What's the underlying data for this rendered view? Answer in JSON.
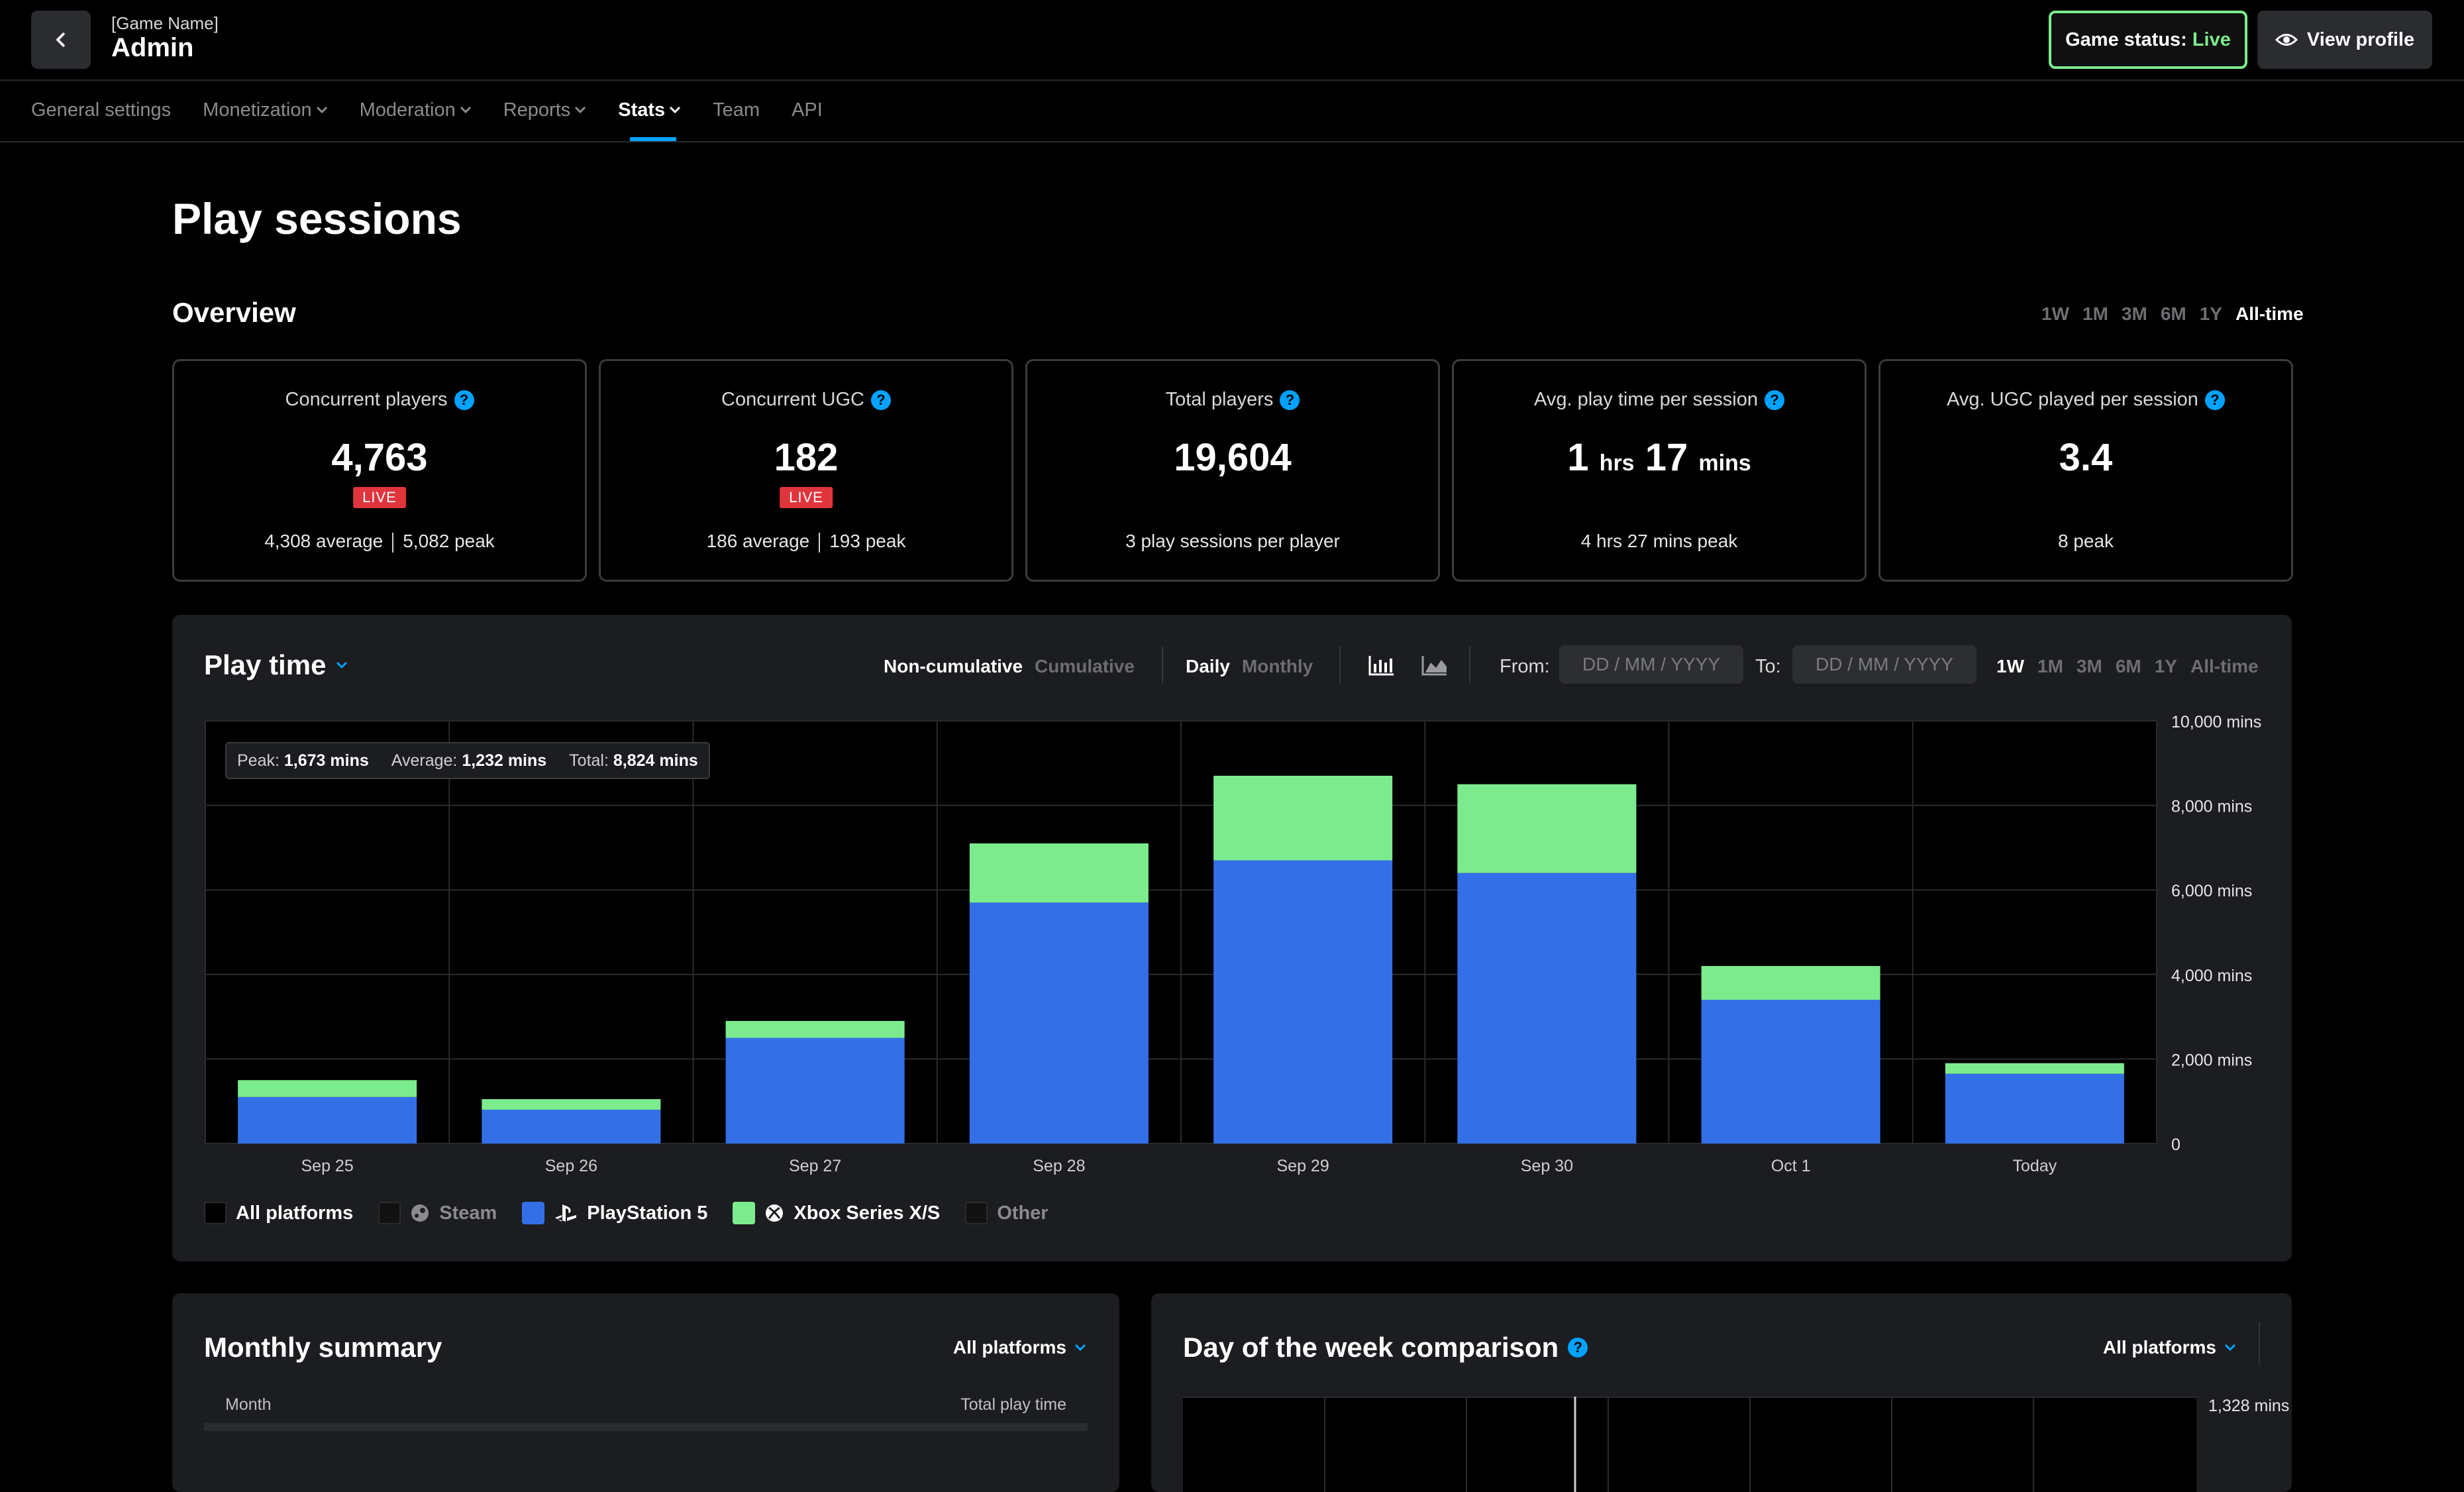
{
  "header": {
    "game_name": "[Game Name]",
    "title": "Admin",
    "status_label": "Game status:",
    "status_value": "Live",
    "view_profile": "View profile"
  },
  "nav": {
    "items": [
      {
        "label": "General settings"
      },
      {
        "label": "Monetization"
      },
      {
        "label": "Moderation"
      },
      {
        "label": "Reports"
      },
      {
        "label": "Stats"
      },
      {
        "label": "Team"
      },
      {
        "label": "API"
      }
    ]
  },
  "page": {
    "title": "Play sessions",
    "overview_title": "Overview",
    "ranges": [
      "1W",
      "1M",
      "3M",
      "6M",
      "1Y",
      "All-time"
    ]
  },
  "cards": [
    {
      "label": "Concurrent players",
      "value": "4,763",
      "badge": "LIVE",
      "sub_a": "4,308 average",
      "sub_b": "5,082 peak"
    },
    {
      "label": "Concurrent UGC",
      "value": "182",
      "badge": "LIVE",
      "sub_a": "186 average",
      "sub_b": "193 peak"
    },
    {
      "label": "Total players",
      "value": "19,604",
      "sub": "3 play sessions per player"
    },
    {
      "label": "Avg. play time per session",
      "v1": "1",
      "u1": "hrs",
      "v2": "17",
      "u2": "mins",
      "sub": "4 hrs 27 mins peak"
    },
    {
      "label": "Avg. UGC played per session",
      "value": "3.4",
      "sub": "8 peak"
    }
  ],
  "playtime": {
    "title": "Play time",
    "non_cumulative": "Non-cumulative",
    "cumulative": "Cumulative",
    "daily": "Daily",
    "monthly": "Monthly",
    "from_label": "From:",
    "to_label": "To:",
    "date_placeholder": "DD / MM / YYYY",
    "ranges": [
      "1W",
      "1M",
      "3M",
      "6M",
      "1Y",
      "All-time"
    ],
    "summary": {
      "peak_label": "Peak:",
      "peak": "1,673 mins",
      "avg_label": "Average:",
      "avg": "1,232 mins",
      "total_label": "Total:",
      "total": "8,824 mins"
    },
    "legend": [
      {
        "name": "All platforms",
        "color": "#000000"
      },
      {
        "name": "Steam",
        "color": "#111111"
      },
      {
        "name": "PlayStation 5",
        "color": "#3370e7"
      },
      {
        "name": "Xbox Series X/S",
        "color": "#7ceb8e"
      },
      {
        "name": "Other",
        "color": "#111111"
      }
    ]
  },
  "chart_data": {
    "type": "bar",
    "stacked": true,
    "categories": [
      "Sep 25",
      "Sep 26",
      "Sep 27",
      "Sep 28",
      "Sep 29",
      "Sep 30",
      "Oct 1",
      "Today"
    ],
    "series": [
      {
        "name": "PlayStation 5",
        "color": "#3370e7",
        "values": [
          1100,
          800,
          2500,
          5700,
          6700,
          6400,
          3400,
          1650
        ]
      },
      {
        "name": "Xbox Series X/S",
        "color": "#7ceb8e",
        "values": [
          400,
          250,
          400,
          1400,
          2000,
          2100,
          800,
          250
        ]
      }
    ],
    "y_ticks": [
      "0",
      "2,000 mins",
      "4,000 mins",
      "6,000 mins",
      "8,000 mins",
      "10,000 mins"
    ],
    "ylim": [
      0,
      10000
    ],
    "grid": true
  },
  "monthly": {
    "title": "Monthly summary",
    "platform": "All platforms",
    "col_month": "Month",
    "col_total": "Total play time"
  },
  "dow": {
    "title": "Day of the week comparison",
    "platform": "All platforms",
    "tick": "1,328 mins"
  }
}
